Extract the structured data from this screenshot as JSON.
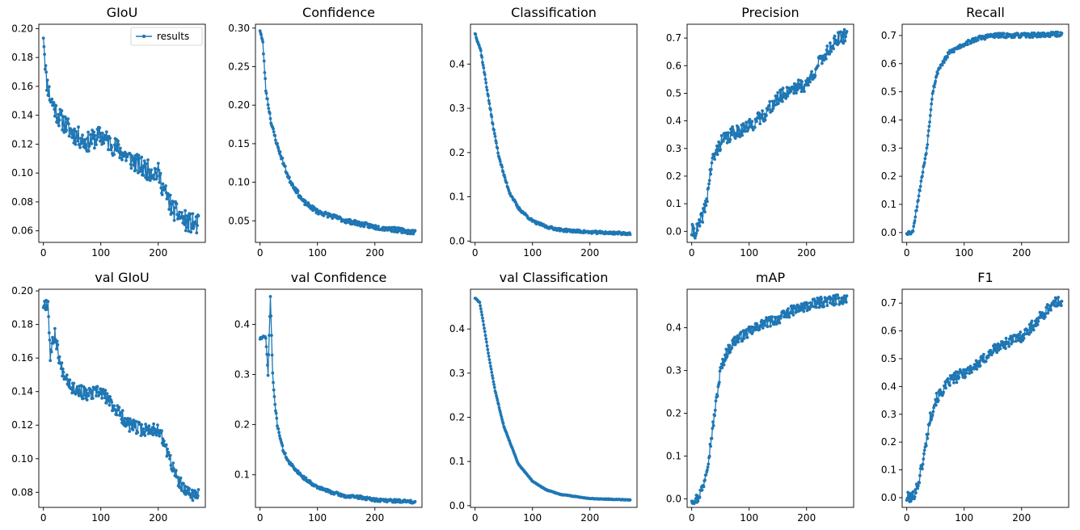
{
  "chart_data": [
    {
      "type": "line",
      "title": "GIoU",
      "series": [
        {
          "name": "results",
          "color": "#1f77b4"
        }
      ],
      "keypoints": [
        [
          0,
          0.197
        ],
        [
          5,
          0.165
        ],
        [
          12,
          0.152
        ],
        [
          25,
          0.14
        ],
        [
          50,
          0.128
        ],
        [
          75,
          0.121
        ],
        [
          100,
          0.126
        ],
        [
          125,
          0.118
        ],
        [
          150,
          0.11
        ],
        [
          175,
          0.103
        ],
        [
          200,
          0.1
        ],
        [
          210,
          0.088
        ],
        [
          225,
          0.075
        ],
        [
          250,
          0.066
        ],
        [
          270,
          0.064
        ]
      ],
      "noise": 0.007,
      "seed": 11,
      "xlim": [
        -8,
        282
      ],
      "ylim": [
        0.052,
        0.203
      ],
      "xticks": [
        0,
        100,
        200
      ],
      "yticks": [
        0.06,
        0.08,
        0.1,
        0.12,
        0.14,
        0.16,
        0.18,
        0.2
      ],
      "ytick_labels": [
        "0.06",
        "0.08",
        "0.10",
        "0.12",
        "0.14",
        "0.16",
        "0.18",
        "0.20"
      ],
      "legend": {
        "label": "results",
        "position": "upper right"
      }
    },
    {
      "type": "line",
      "title": "Confidence",
      "series": [
        {
          "name": "results",
          "color": "#1f77b4"
        }
      ],
      "keypoints": [
        [
          0,
          0.298
        ],
        [
          5,
          0.28
        ],
        [
          10,
          0.22
        ],
        [
          20,
          0.175
        ],
        [
          30,
          0.148
        ],
        [
          50,
          0.105
        ],
        [
          75,
          0.075
        ],
        [
          100,
          0.062
        ],
        [
          150,
          0.05
        ],
        [
          200,
          0.042
        ],
        [
          270,
          0.035
        ]
      ],
      "noise": 0.003,
      "seed": 23,
      "xlim": [
        -8,
        282
      ],
      "ylim": [
        0.022,
        0.305
      ],
      "xticks": [
        0,
        100,
        200
      ],
      "yticks": [
        0.05,
        0.1,
        0.15,
        0.2,
        0.25,
        0.3
      ],
      "ytick_labels": [
        "0.05",
        "0.10",
        "0.15",
        "0.20",
        "0.25",
        "0.30"
      ]
    },
    {
      "type": "line",
      "title": "Classification",
      "series": [
        {
          "name": "results",
          "color": "#1f77b4"
        }
      ],
      "keypoints": [
        [
          0,
          0.47
        ],
        [
          10,
          0.43
        ],
        [
          20,
          0.35
        ],
        [
          30,
          0.27
        ],
        [
          40,
          0.2
        ],
        [
          50,
          0.15
        ],
        [
          60,
          0.11
        ],
        [
          75,
          0.075
        ],
        [
          100,
          0.045
        ],
        [
          125,
          0.032
        ],
        [
          150,
          0.025
        ],
        [
          200,
          0.02
        ],
        [
          270,
          0.017
        ]
      ],
      "noise": 0.003,
      "seed": 37,
      "xlim": [
        -8,
        282
      ],
      "ylim": [
        -0.003,
        0.49
      ],
      "xticks": [
        0,
        100,
        200
      ],
      "yticks": [
        0.0,
        0.1,
        0.2,
        0.3,
        0.4
      ],
      "ytick_labels": [
        "0.0",
        "0.1",
        "0.2",
        "0.3",
        "0.4"
      ]
    },
    {
      "type": "line",
      "title": "Precision",
      "series": [
        {
          "name": "results",
          "color": "#1f77b4"
        }
      ],
      "keypoints": [
        [
          0,
          0.0
        ],
        [
          8,
          0.0
        ],
        [
          15,
          0.03
        ],
        [
          25,
          0.1
        ],
        [
          35,
          0.25
        ],
        [
          50,
          0.32
        ],
        [
          75,
          0.36
        ],
        [
          100,
          0.38
        ],
        [
          125,
          0.42
        ],
        [
          150,
          0.48
        ],
        [
          175,
          0.52
        ],
        [
          200,
          0.53
        ],
        [
          225,
          0.62
        ],
        [
          250,
          0.69
        ],
        [
          270,
          0.71
        ]
      ],
      "noise": 0.025,
      "seed": 41,
      "xlim": [
        -8,
        282
      ],
      "ylim": [
        -0.04,
        0.75
      ],
      "xticks": [
        0,
        100,
        200
      ],
      "yticks": [
        0.0,
        0.1,
        0.2,
        0.3,
        0.4,
        0.5,
        0.6,
        0.7
      ],
      "ytick_labels": [
        "0.0",
        "0.1",
        "0.2",
        "0.3",
        "0.4",
        "0.5",
        "0.6",
        "0.7"
      ]
    },
    {
      "type": "line",
      "title": "Recall",
      "series": [
        {
          "name": "results",
          "color": "#1f77b4"
        }
      ],
      "keypoints": [
        [
          0,
          0.0
        ],
        [
          10,
          0.0
        ],
        [
          15,
          0.06
        ],
        [
          25,
          0.18
        ],
        [
          35,
          0.3
        ],
        [
          45,
          0.5
        ],
        [
          55,
          0.58
        ],
        [
          75,
          0.64
        ],
        [
          100,
          0.67
        ],
        [
          125,
          0.69
        ],
        [
          150,
          0.7
        ],
        [
          200,
          0.7
        ],
        [
          270,
          0.705
        ]
      ],
      "noise": 0.008,
      "seed": 53,
      "xlim": [
        -8,
        282
      ],
      "ylim": [
        -0.035,
        0.74
      ],
      "xticks": [
        0,
        100,
        200
      ],
      "yticks": [
        0.0,
        0.1,
        0.2,
        0.3,
        0.4,
        0.5,
        0.6,
        0.7
      ],
      "ytick_labels": [
        "0.0",
        "0.1",
        "0.2",
        "0.3",
        "0.4",
        "0.5",
        "0.6",
        "0.7"
      ]
    },
    {
      "type": "line",
      "title": "val GIoU",
      "series": [
        {
          "name": "results",
          "color": "#1f77b4"
        }
      ],
      "keypoints": [
        [
          0,
          0.192
        ],
        [
          8,
          0.193
        ],
        [
          12,
          0.162
        ],
        [
          20,
          0.175
        ],
        [
          30,
          0.155
        ],
        [
          50,
          0.143
        ],
        [
          75,
          0.138
        ],
        [
          100,
          0.14
        ],
        [
          125,
          0.13
        ],
        [
          150,
          0.12
        ],
        [
          175,
          0.117
        ],
        [
          200,
          0.118
        ],
        [
          215,
          0.105
        ],
        [
          230,
          0.09
        ],
        [
          245,
          0.081
        ],
        [
          270,
          0.078
        ]
      ],
      "noise": 0.004,
      "seed": 67,
      "xlim": [
        -8,
        282
      ],
      "ylim": [
        0.071,
        0.201
      ],
      "xticks": [
        0,
        100,
        200
      ],
      "yticks": [
        0.08,
        0.1,
        0.12,
        0.14,
        0.16,
        0.18,
        0.2
      ],
      "ytick_labels": [
        "0.08",
        "0.10",
        "0.12",
        "0.14",
        "0.16",
        "0.18",
        "0.20"
      ]
    },
    {
      "type": "line",
      "title": "val Confidence",
      "series": [
        {
          "name": "results",
          "color": "#1f77b4"
        }
      ],
      "keypoints": [
        [
          0,
          0.372
        ],
        [
          10,
          0.375
        ],
        [
          14,
          0.3
        ],
        [
          18,
          0.455
        ],
        [
          22,
          0.3
        ],
        [
          26,
          0.24
        ],
        [
          30,
          0.2
        ],
        [
          40,
          0.15
        ],
        [
          50,
          0.125
        ],
        [
          75,
          0.095
        ],
        [
          100,
          0.075
        ],
        [
          125,
          0.065
        ],
        [
          150,
          0.057
        ],
        [
          175,
          0.055
        ],
        [
          200,
          0.05
        ],
        [
          270,
          0.046
        ]
      ],
      "noise": 0.003,
      "seed": 71,
      "xlim": [
        -8,
        282
      ],
      "ylim": [
        0.035,
        0.47
      ],
      "xticks": [
        0,
        100,
        200
      ],
      "yticks": [
        0.1,
        0.2,
        0.3,
        0.4
      ],
      "ytick_labels": [
        "0.1",
        "0.2",
        "0.3",
        "0.4"
      ]
    },
    {
      "type": "line",
      "title": "val Classification",
      "series": [
        {
          "name": "results",
          "color": "#1f77b4"
        }
      ],
      "keypoints": [
        [
          0,
          0.47
        ],
        [
          8,
          0.46
        ],
        [
          15,
          0.41
        ],
        [
          25,
          0.33
        ],
        [
          35,
          0.26
        ],
        [
          50,
          0.18
        ],
        [
          75,
          0.095
        ],
        [
          100,
          0.055
        ],
        [
          125,
          0.035
        ],
        [
          150,
          0.025
        ],
        [
          200,
          0.016
        ],
        [
          270,
          0.013
        ]
      ],
      "noise": 0.0008,
      "seed": 83,
      "xlim": [
        -8,
        282
      ],
      "ylim": [
        -0.004,
        0.49
      ],
      "xticks": [
        0,
        100,
        200
      ],
      "yticks": [
        0.0,
        0.1,
        0.2,
        0.3,
        0.4
      ],
      "ytick_labels": [
        "0.0",
        "0.1",
        "0.2",
        "0.3",
        "0.4"
      ]
    },
    {
      "type": "line",
      "title": "mAP",
      "series": [
        {
          "name": "results",
          "color": "#1f77b4"
        }
      ],
      "keypoints": [
        [
          0,
          0.0
        ],
        [
          10,
          0.0
        ],
        [
          20,
          0.03
        ],
        [
          30,
          0.1
        ],
        [
          40,
          0.2
        ],
        [
          50,
          0.3
        ],
        [
          60,
          0.34
        ],
        [
          75,
          0.37
        ],
        [
          100,
          0.39
        ],
        [
          125,
          0.41
        ],
        [
          150,
          0.42
        ],
        [
          175,
          0.44
        ],
        [
          200,
          0.45
        ],
        [
          225,
          0.46
        ],
        [
          270,
          0.468
        ]
      ],
      "noise": 0.012,
      "seed": 97,
      "xlim": [
        -8,
        282
      ],
      "ylim": [
        -0.02,
        0.49
      ],
      "xticks": [
        0,
        100,
        200
      ],
      "yticks": [
        0.0,
        0.1,
        0.2,
        0.3,
        0.4
      ],
      "ytick_labels": [
        "0.0",
        "0.1",
        "0.2",
        "0.3",
        "0.4"
      ]
    },
    {
      "type": "line",
      "title": "F1",
      "series": [
        {
          "name": "results",
          "color": "#1f77b4"
        }
      ],
      "keypoints": [
        [
          0,
          0.0
        ],
        [
          10,
          0.0
        ],
        [
          20,
          0.05
        ],
        [
          30,
          0.15
        ],
        [
          40,
          0.28
        ],
        [
          50,
          0.35
        ],
        [
          75,
          0.42
        ],
        [
          100,
          0.45
        ],
        [
          125,
          0.48
        ],
        [
          150,
          0.53
        ],
        [
          175,
          0.56
        ],
        [
          200,
          0.58
        ],
        [
          225,
          0.63
        ],
        [
          250,
          0.69
        ],
        [
          270,
          0.71
        ]
      ],
      "noise": 0.02,
      "seed": 101,
      "xlim": [
        -8,
        282
      ],
      "ylim": [
        -0.035,
        0.75
      ],
      "xticks": [
        0,
        100,
        200
      ],
      "yticks": [
        0.0,
        0.1,
        0.2,
        0.3,
        0.4,
        0.5,
        0.6,
        0.7
      ],
      "ytick_labels": [
        "0.0",
        "0.1",
        "0.2",
        "0.3",
        "0.4",
        "0.5",
        "0.6",
        "0.7"
      ]
    }
  ]
}
